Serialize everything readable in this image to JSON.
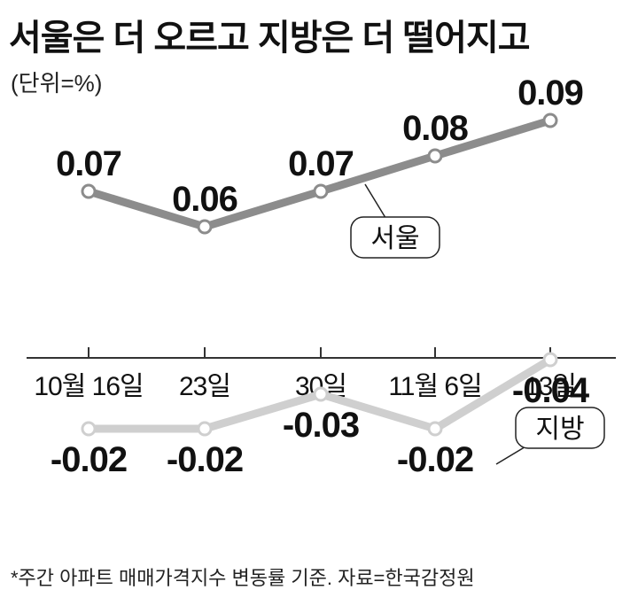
{
  "chart_data": {
    "type": "line",
    "title": "서울은 더 오르고 지방은 더 떨어지고",
    "unit": "(단위=%)",
    "categories": [
      "10월 16일",
      "23일",
      "30일",
      "11월 6일",
      "13일"
    ],
    "series": [
      {
        "name": "서울",
        "values": [
          0.07,
          0.06,
          0.07,
          0.08,
          0.09
        ],
        "labels": [
          "0.07",
          "0.06",
          "0.07",
          "0.08",
          "0.09"
        ],
        "color": "#8c8c8c"
      },
      {
        "name": "지방",
        "values": [
          -0.02,
          -0.02,
          -0.03,
          -0.02,
          -0.04
        ],
        "labels": [
          "-0.02",
          "-0.02",
          "-0.03",
          "-0.02",
          "-0.04"
        ],
        "color": "#cfcfcf"
      }
    ],
    "source": "*주간 아파트 매매가격지수 변동률 기준. 자료=한국감정원",
    "grid": false,
    "legend": "inline callouts"
  }
}
